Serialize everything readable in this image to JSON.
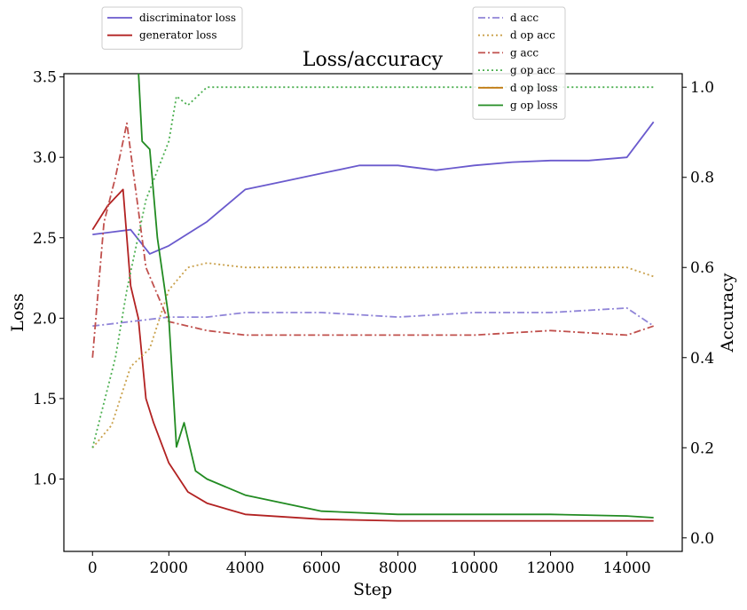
{
  "chart_data": {
    "type": "line",
    "title": "Loss/accuracy",
    "xlabel": "Step",
    "ylabel_left": "Loss",
    "ylabel_right": "Accuracy",
    "xlim": [
      -750,
      15450
    ],
    "ylim_left": [
      0.55,
      3.52
    ],
    "ylim_right": [
      -0.03,
      1.03
    ],
    "x_ticks": [
      0,
      2000,
      4000,
      6000,
      8000,
      10000,
      12000,
      14000
    ],
    "y_ticks_left": [
      1.0,
      1.5,
      2.0,
      2.5,
      3.0,
      3.5
    ],
    "y_ticks_right": [
      0.0,
      0.2,
      0.4,
      0.6,
      0.8,
      1.0
    ],
    "legend_left": {
      "placement": "top-left, above axes",
      "items": [
        "discriminator loss",
        "generator loss"
      ]
    },
    "legend_right": {
      "placement": "top-right",
      "items": [
        "d acc",
        "d op acc",
        "g acc",
        "g op acc",
        "d op loss",
        "g op loss"
      ]
    },
    "series": [
      {
        "name": "discriminator loss",
        "axis": "left",
        "color": "#6a5acd",
        "dash": "solid",
        "x": [
          0,
          1000,
          1500,
          2000,
          3000,
          4000,
          5000,
          6000,
          7000,
          8000,
          9000,
          10000,
          11000,
          12000,
          13000,
          14000,
          14700
        ],
        "values": [
          2.52,
          2.55,
          2.4,
          2.45,
          2.6,
          2.8,
          2.85,
          2.9,
          2.95,
          2.95,
          2.92,
          2.95,
          2.97,
          2.98,
          2.98,
          3.0,
          3.22
        ]
      },
      {
        "name": "generator loss",
        "axis": "left",
        "color": "#b22222",
        "dash": "solid",
        "x": [
          0,
          400,
          800,
          1000,
          1200,
          1400,
          1600,
          2000,
          2500,
          3000,
          4000,
          6000,
          8000,
          10000,
          12000,
          14000,
          14700
        ],
        "values": [
          2.55,
          2.7,
          2.8,
          2.2,
          2.0,
          1.5,
          1.35,
          1.1,
          0.92,
          0.85,
          0.78,
          0.75,
          0.74,
          0.74,
          0.74,
          0.74,
          0.74
        ]
      },
      {
        "name": "d acc",
        "axis": "right",
        "color": "#9085d8",
        "dash": "dashdot",
        "x": [
          0,
          1000,
          2000,
          3000,
          4000,
          6000,
          8000,
          10000,
          12000,
          14000,
          14700
        ],
        "values": [
          0.47,
          0.48,
          0.49,
          0.49,
          0.5,
          0.5,
          0.49,
          0.5,
          0.5,
          0.51,
          0.47
        ]
      },
      {
        "name": "d op acc",
        "axis": "right",
        "color": "#c9a04a",
        "dash": "dotted",
        "x": [
          0,
          500,
          1000,
          1500,
          2000,
          2500,
          3000,
          4000,
          6000,
          8000,
          10000,
          12000,
          14000,
          14700
        ],
        "values": [
          0.2,
          0.25,
          0.38,
          0.42,
          0.55,
          0.6,
          0.61,
          0.6,
          0.6,
          0.6,
          0.6,
          0.6,
          0.6,
          0.58
        ]
      },
      {
        "name": "g acc",
        "axis": "right",
        "color": "#c0504d",
        "dash": "dashdot",
        "x": [
          0,
          300,
          600,
          900,
          1400,
          2000,
          3000,
          4000,
          6000,
          8000,
          10000,
          12000,
          14000,
          14700
        ],
        "values": [
          0.4,
          0.7,
          0.8,
          0.92,
          0.6,
          0.48,
          0.46,
          0.45,
          0.45,
          0.45,
          0.45,
          0.46,
          0.45,
          0.47
        ]
      },
      {
        "name": "g op acc",
        "axis": "right",
        "color": "#4caf50",
        "dash": "dotted",
        "x": [
          0,
          300,
          600,
          900,
          1400,
          2000,
          2200,
          2500,
          3000,
          4000,
          6000,
          8000,
          10000,
          12000,
          14000,
          14700
        ],
        "values": [
          0.2,
          0.3,
          0.4,
          0.55,
          0.75,
          0.88,
          0.98,
          0.96,
          1.0,
          1.0,
          1.0,
          1.0,
          1.0,
          1.0,
          1.0,
          1.0
        ]
      },
      {
        "name": "d op loss",
        "axis": "left",
        "color": "#c07a10",
        "dash": "solid",
        "x": [],
        "values": []
      },
      {
        "name": "g op loss",
        "axis": "left",
        "color": "#228b22",
        "dash": "solid",
        "x": [
          1200,
          1300,
          1500,
          1700,
          2000,
          2200,
          2400,
          2700,
          3000,
          4000,
          6000,
          8000,
          10000,
          12000,
          14000,
          14700
        ],
        "values": [
          3.55,
          3.1,
          3.05,
          2.5,
          2.0,
          1.2,
          1.35,
          1.05,
          1.0,
          0.9,
          0.8,
          0.78,
          0.78,
          0.78,
          0.77,
          0.76
        ]
      }
    ]
  }
}
